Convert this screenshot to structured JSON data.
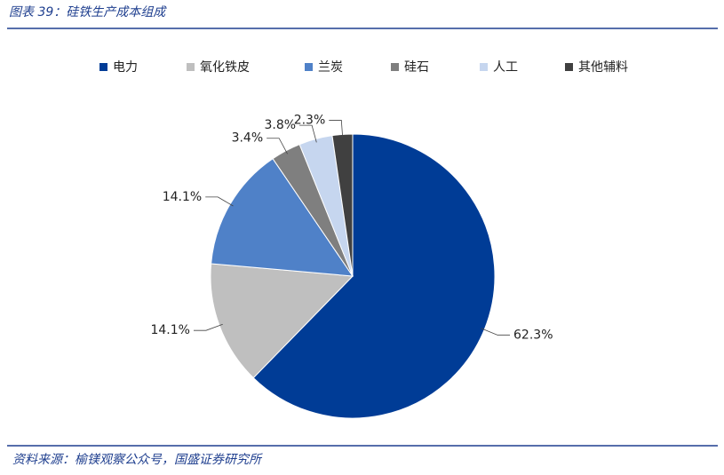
{
  "header": {
    "title": "图表 39：硅铁生产成本组成"
  },
  "chart_data": {
    "type": "pie",
    "categories": [
      "电力",
      "氧化铁皮",
      "兰炭",
      "硅石",
      "人工",
      "其他辅料"
    ],
    "values": [
      62.3,
      14.1,
      14.1,
      3.4,
      3.8,
      2.3
    ],
    "value_labels": [
      "62.3%",
      "14.1%",
      "14.1%",
      "3.4%",
      "3.8%",
      "2.3%"
    ],
    "colors": [
      "#003c96",
      "#bfbfbf",
      "#4f81c8",
      "#7f7f7f",
      "#c6d6ef",
      "#404040"
    ],
    "legend": "top"
  },
  "footer": {
    "source": "资料来源：榆镁观察公众号，国盛证券研究所"
  }
}
